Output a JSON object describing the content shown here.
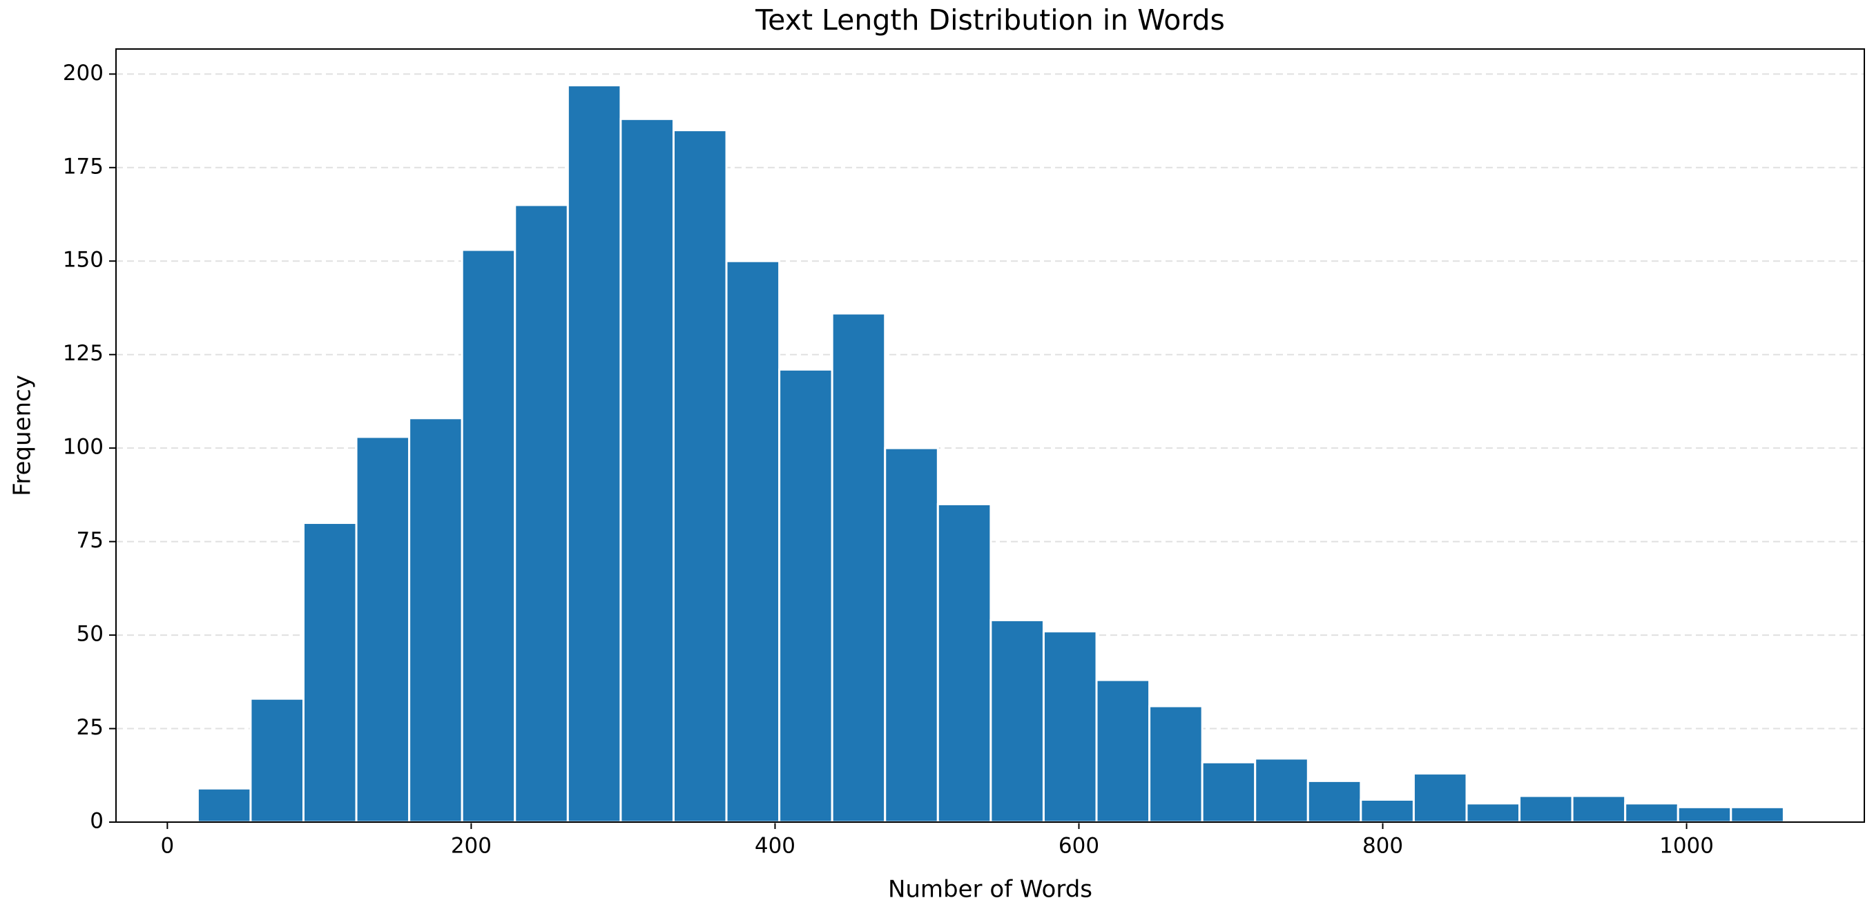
{
  "chart_data": {
    "type": "histogram",
    "title": "Text Length Distribution in Words",
    "x_label": "Number of Words",
    "y_label": "Frequency",
    "bins": [
      20,
      54.8,
      89.6,
      124.4,
      159.2,
      194,
      228.8,
      263.6,
      298.4,
      333.2,
      368,
      402.8,
      437.6,
      472.4,
      507.2,
      542,
      576.8,
      611.6,
      646.4,
      681.2,
      716,
      750.8,
      785.6,
      820.4,
      855.2,
      890,
      924.8,
      959.6,
      994.4,
      1029.2,
      1064
    ],
    "values": [
      9,
      33,
      80,
      103,
      108,
      153,
      165,
      197,
      188,
      185,
      150,
      121,
      136,
      100,
      85,
      54,
      51,
      38,
      31,
      16,
      17,
      11,
      6,
      13,
      5,
      7,
      7,
      5,
      4,
      4
    ],
    "color": "#1f77b4",
    "xlim": [
      -33.8,
      1117
    ],
    "ylim": [
      0,
      206.7
    ],
    "xticks": [
      0,
      200,
      400,
      600,
      800,
      1000
    ],
    "yticks": [
      0,
      25,
      50,
      75,
      100,
      125,
      150,
      175,
      200
    ],
    "grid": true
  }
}
